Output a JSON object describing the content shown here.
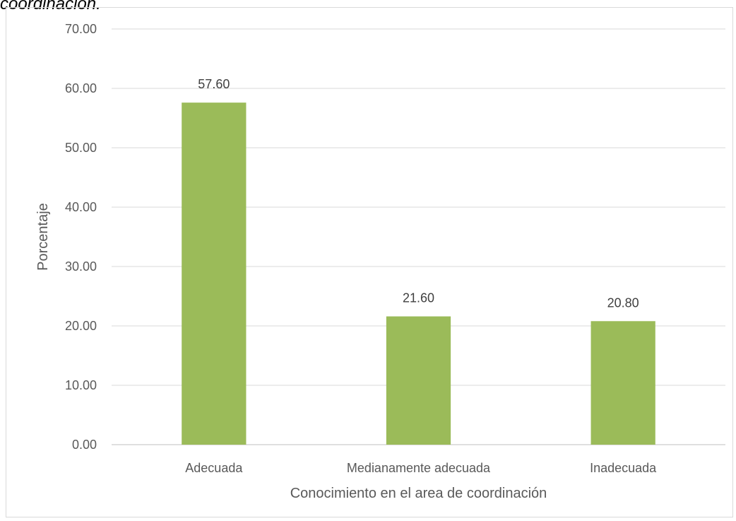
{
  "caption_fragment": "coordinación.",
  "chart_data": {
    "type": "bar",
    "title": "",
    "categories": [
      "Adecuada",
      "Medianamente adecuada",
      "Inadecuada"
    ],
    "values": [
      57.6,
      21.6,
      20.8
    ],
    "data_labels": [
      "57.60",
      "21.60",
      "20.80"
    ],
    "xlabel": "Conocimiento en el area de coordinación",
    "ylabel": "Porcentaje",
    "ylim": [
      0,
      70
    ],
    "yticks": [
      0,
      10,
      20,
      30,
      40,
      50,
      60,
      70
    ],
    "ytick_labels": [
      "0.00",
      "10.00",
      "20.00",
      "30.00",
      "40.00",
      "50.00",
      "60.00",
      "70.00"
    ],
    "grid": true,
    "legend": "none",
    "colors": {
      "bar": "#9bbb59",
      "grid": "#d9d9d9",
      "axis": "#bfbfbf"
    }
  }
}
